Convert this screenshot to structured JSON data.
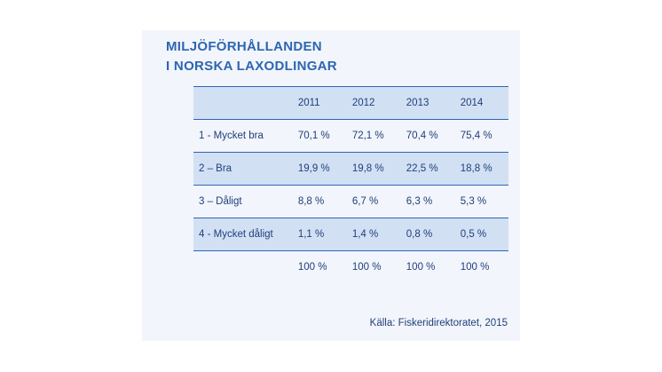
{
  "chart_data": {
    "type": "table",
    "title": [
      "MILJÖFÖRHÅLLANDEN",
      "I NORSKA LAXODLINGAR"
    ],
    "columns": [
      "2011",
      "2012",
      "2013",
      "2014"
    ],
    "rows": [
      {
        "label": "1 - Mycket bra",
        "values": [
          "70,1 %",
          "72,1 %",
          "70,4 %",
          "75,4 %"
        ]
      },
      {
        "label": "2 – Bra",
        "values": [
          "19,9 %",
          "19,8 %",
          "22,5 %",
          "18,8 %"
        ]
      },
      {
        "label": "3 – Dåligt",
        "values": [
          "8,8 %",
          "6,7 %",
          "6,3 %",
          "5,3 %"
        ]
      },
      {
        "label": "4 - Mycket dåligt",
        "values": [
          "1,1 %",
          "1,4 %",
          "0,8 %",
          "0,5 %"
        ]
      }
    ],
    "totals": [
      "100 %",
      "100 %",
      "100 %",
      "100 %"
    ],
    "source": "Källa: Fiskeridirektoratet, 2015"
  }
}
